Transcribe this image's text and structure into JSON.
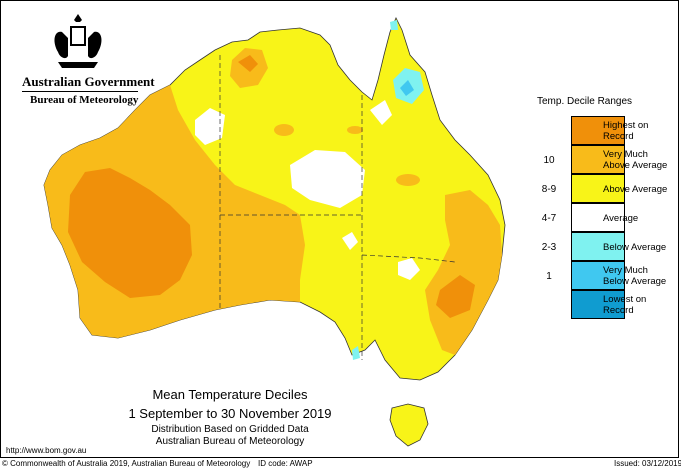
{
  "header": {
    "government": "Australian Government",
    "bureau": "Bureau of Meteorology"
  },
  "legend": {
    "title": "Temp. Decile Ranges",
    "items": [
      {
        "label": "Highest on\nRecord",
        "range": "",
        "color": "#f0900a"
      },
      {
        "label": "Very Much\nAbove Average",
        "range": "10",
        "color": "#f8bb1a"
      },
      {
        "label": "Above Average",
        "range": "8-9",
        "color": "#f8f418"
      },
      {
        "label": "Average",
        "range": "4-7",
        "color": "#ffffff"
      },
      {
        "label": "Below Average",
        "range": "2-3",
        "color": "#7ff2f0"
      },
      {
        "label": "Very Much\nBelow Average",
        "range": "1",
        "color": "#40c8f0"
      },
      {
        "label": "Lowest on\nRecord",
        "range": "",
        "color": "#109cd0"
      }
    ]
  },
  "caption": {
    "title": "Mean Temperature Deciles",
    "period": "1 September to 30 November 2019",
    "line3": "Distribution Based on Gridded Data",
    "line4": "Australian Bureau of Meteorology"
  },
  "footer": {
    "url": "http://www.bom.gov.au",
    "copyright": "© Commonwealth of Australia 2019, Australian Bureau of Meteorology",
    "id_code": "ID code: AWAP",
    "issued": "Issued: 03/12/2019"
  }
}
